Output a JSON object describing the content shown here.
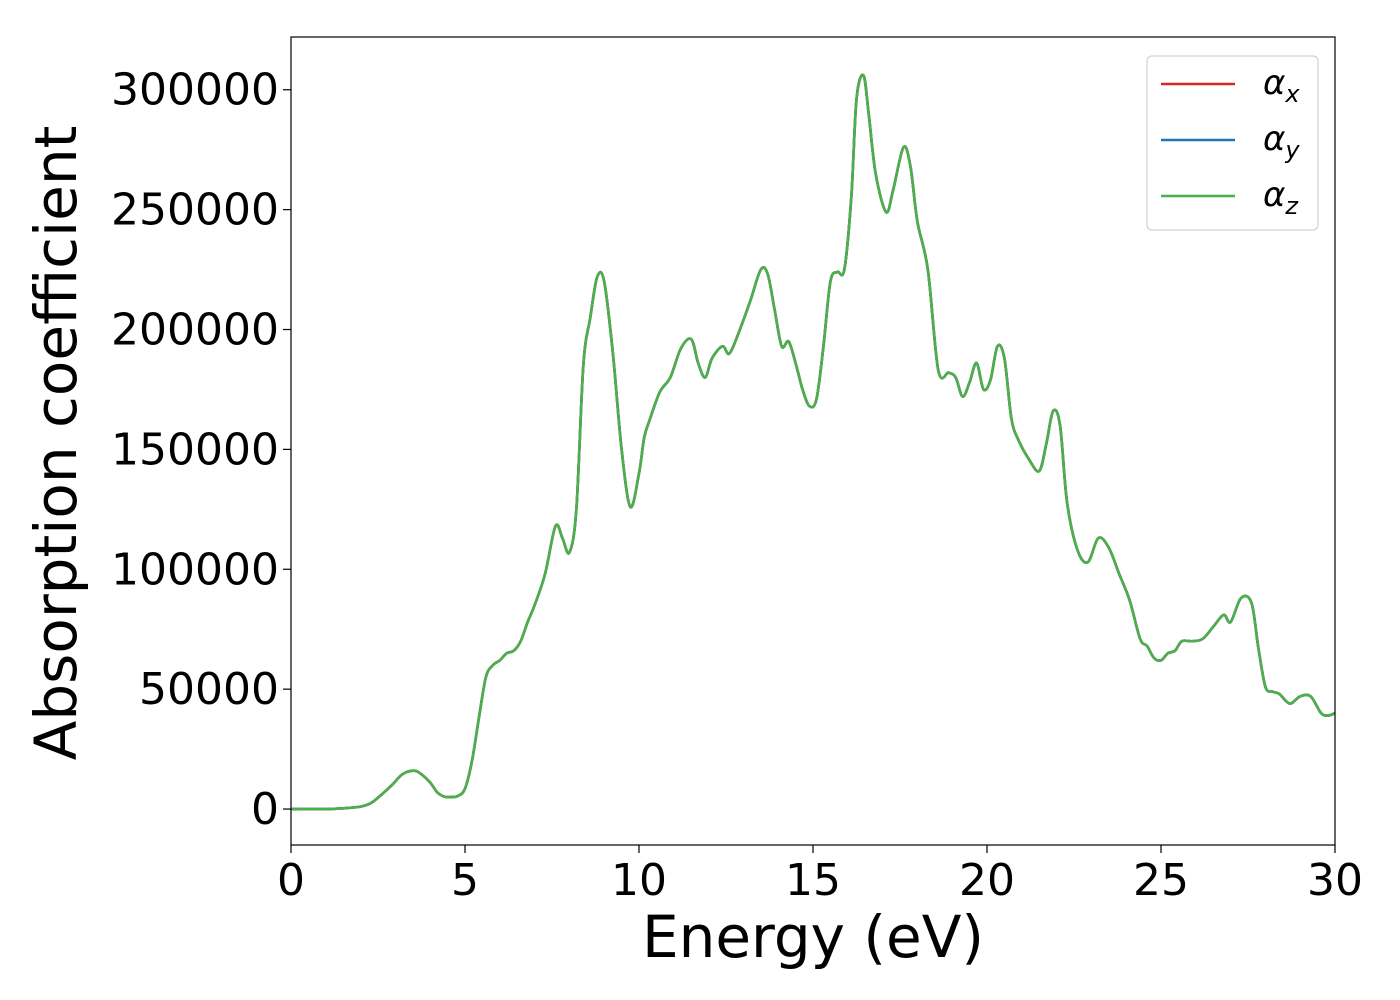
{
  "chart_data": {
    "type": "line",
    "title": "",
    "xlabel": "Energy (eV)",
    "ylabel": "Absorption coefficient",
    "xlim": [
      0,
      30
    ],
    "ylim": [
      -15000,
      322000
    ],
    "xticks": [
      0,
      5,
      10,
      15,
      20,
      25,
      30
    ],
    "yticks": [
      0,
      50000,
      100000,
      150000,
      200000,
      250000,
      300000
    ],
    "grid": false,
    "legend_position": "top-right",
    "series": [
      {
        "name": "αx",
        "symbol": "α",
        "subscript": "x",
        "color": "#d62728",
        "note_identical_curve": true
      },
      {
        "name": "αy",
        "symbol": "α",
        "subscript": "y",
        "color": "#1f77b4",
        "note_identical_curve": true
      },
      {
        "name": "αz",
        "symbol": "α",
        "subscript": "z",
        "color": "#4daf4a"
      }
    ],
    "x": [
      0,
      1.0,
      1.5,
      2.0,
      2.3,
      2.6,
      2.9,
      3.2,
      3.5,
      3.7,
      4.0,
      4.2,
      4.4,
      4.6,
      4.8,
      5.0,
      5.2,
      5.4,
      5.6,
      5.8,
      6.0,
      6.2,
      6.4,
      6.6,
      6.8,
      7.0,
      7.3,
      7.6,
      7.8,
      8.0,
      8.2,
      8.4,
      8.6,
      8.8,
      9.0,
      9.25,
      9.5,
      9.75,
      10.0,
      10.15,
      10.3,
      10.6,
      10.9,
      11.2,
      11.5,
      11.7,
      11.9,
      12.1,
      12.4,
      12.6,
      12.9,
      13.2,
      13.5,
      13.7,
      13.9,
      14.1,
      14.3,
      14.5,
      14.7,
      14.9,
      15.1,
      15.3,
      15.5,
      15.7,
      15.9,
      16.1,
      16.25,
      16.45,
      16.6,
      16.8,
      17.1,
      17.3,
      17.6,
      17.8,
      18.0,
      18.3,
      18.6,
      18.9,
      19.1,
      19.3,
      19.5,
      19.7,
      19.9,
      20.1,
      20.3,
      20.5,
      20.7,
      20.9,
      21.2,
      21.5,
      21.7,
      21.9,
      22.1,
      22.3,
      22.6,
      22.9,
      23.2,
      23.5,
      23.8,
      24.1,
      24.4,
      24.6,
      24.8,
      25.0,
      25.2,
      25.4,
      25.6,
      25.9,
      26.2,
      26.5,
      26.8,
      27.0,
      27.3,
      27.6,
      27.8,
      28.0,
      28.2,
      28.4,
      28.7,
      29.0,
      29.3,
      29.6,
      29.8,
      30.0
    ],
    "values": [
      0,
      0,
      300,
      1000,
      2500,
      6000,
      10000,
      14500,
      16000,
      15000,
      11000,
      7000,
      5200,
      5000,
      5500,
      8500,
      20000,
      38000,
      55000,
      60000,
      62000,
      65000,
      66000,
      70000,
      78000,
      85000,
      98000,
      118000,
      113000,
      107000,
      125000,
      185000,
      205000,
      222000,
      220000,
      190000,
      150000,
      126000,
      140000,
      155000,
      162000,
      174000,
      180000,
      192000,
      196000,
      186000,
      180000,
      188000,
      193000,
      190000,
      200000,
      212000,
      225000,
      223000,
      208000,
      193000,
      195000,
      186000,
      175000,
      168000,
      171000,
      193000,
      220000,
      224000,
      225000,
      255000,
      296000,
      306000,
      290000,
      265000,
      249000,
      258000,
      276000,
      268000,
      245000,
      225000,
      183000,
      182000,
      180000,
      172000,
      178000,
      186000,
      175000,
      179000,
      193000,
      188000,
      163000,
      154000,
      146000,
      141000,
      152000,
      166000,
      160000,
      128000,
      108000,
      103000,
      113000,
      109000,
      98000,
      87000,
      71000,
      68000,
      63000,
      62000,
      65000,
      66000,
      70000,
      70000,
      71000,
      76000,
      81000,
      78000,
      88000,
      86000,
      67000,
      51000,
      49000,
      48000,
      44000,
      47000,
      47000,
      40000,
      39000,
      40000
    ]
  }
}
